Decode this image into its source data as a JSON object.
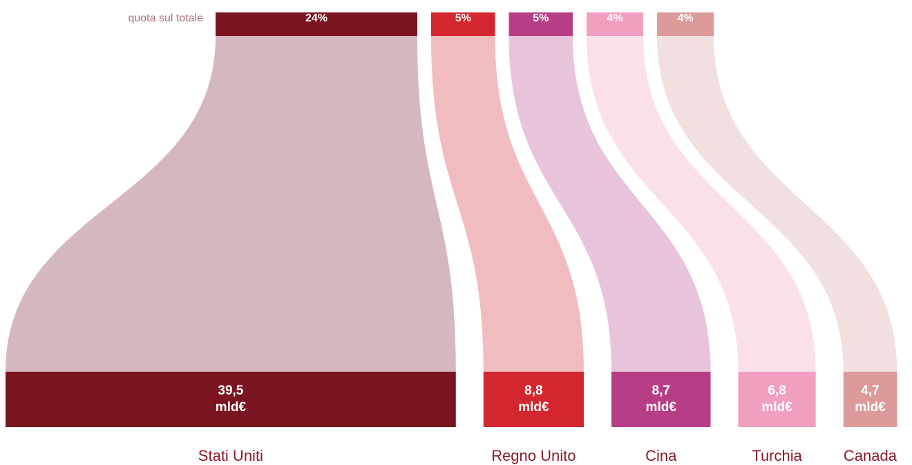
{
  "chart_data": {
    "type": "sankey",
    "share_label": "quota sul totale",
    "categories": [
      "Stati Uniti",
      "Regno Unito",
      "Cina",
      "Turchia",
      "Canada"
    ],
    "shares": [
      24,
      5,
      5,
      4,
      4
    ],
    "share_labels": [
      "24%",
      "5%",
      "5%",
      "4%",
      "4%"
    ],
    "values": [
      39.5,
      8.8,
      8.7,
      6.8,
      4.7
    ],
    "value_labels": [
      "39,5 mld€",
      "8,8 mld€",
      "8,7 mld€",
      "6,8 mld€",
      "4,7 mld€"
    ],
    "colors": [
      "#7a1420",
      "#d4262e",
      "#b73d86",
      "#f09fc0",
      "#dc9a9a"
    ],
    "flow_colors": [
      "#d5b8bd",
      "#f1bcbf",
      "#e8c4da",
      "#fbe0ea",
      "#f2dfe0"
    ]
  }
}
